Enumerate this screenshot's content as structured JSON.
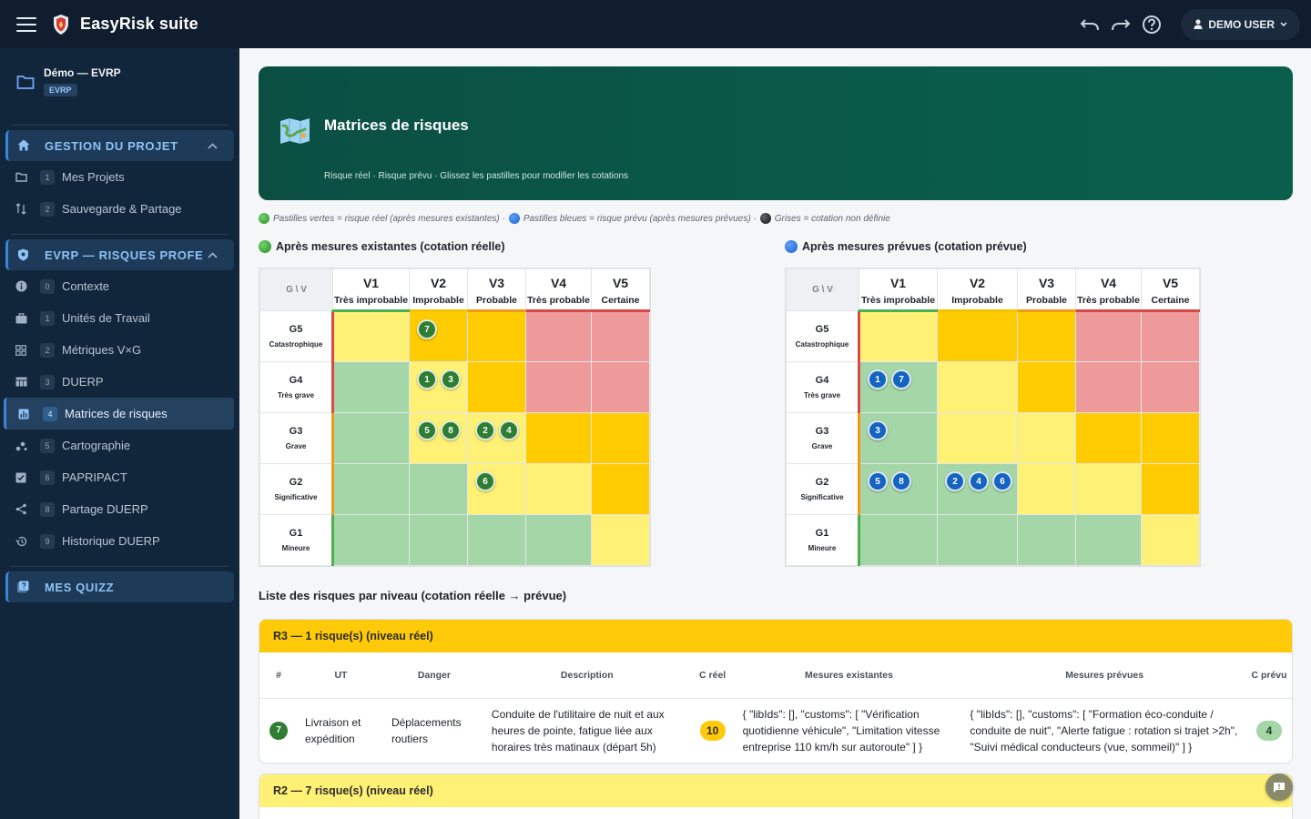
{
  "app": {
    "title": "EasyRisk suite",
    "user": "DEMO USER",
    "colors": {
      "topbar": "#0f1d2e",
      "sidebar": "#12263b",
      "hero": "#0a5a49"
    }
  },
  "sidebar": {
    "project": {
      "name": "Démo — EVRP",
      "badge": "EVRP"
    },
    "sections": [
      {
        "label": "GESTION DU PROJET",
        "icon": "home-icon",
        "items": [
          {
            "num": "1",
            "label": "Mes Projets",
            "icon": "folder-icon"
          },
          {
            "num": "2",
            "label": "Sauvegarde & Partage",
            "icon": "sort-arrows-icon"
          }
        ]
      },
      {
        "label": "EVRP — RISQUES PROFE",
        "icon": "shield-icon",
        "items": [
          {
            "num": "0",
            "label": "Contexte",
            "icon": "info-icon"
          },
          {
            "num": "1",
            "label": "Unités de Travail",
            "icon": "briefcase-icon"
          },
          {
            "num": "2",
            "label": "Métriques V×G",
            "icon": "grid-icon"
          },
          {
            "num": "3",
            "label": "DUERP",
            "icon": "table-icon"
          },
          {
            "num": "4",
            "label": "Matrices de risques",
            "icon": "bar-chart-icon"
          },
          {
            "num": "5",
            "label": "Cartographie",
            "icon": "scatter-icon"
          },
          {
            "num": "6",
            "label": "PAPRIPACT",
            "icon": "clipboard-check-icon"
          },
          {
            "num": "8",
            "label": "Partage DUERP",
            "icon": "share-icon"
          },
          {
            "num": "9",
            "label": "Historique DUERP",
            "icon": "history-icon"
          }
        ]
      },
      {
        "label": "MES QUIZZ",
        "icon": "quiz-icon"
      }
    ]
  },
  "hero": {
    "title": "Matrices de risques",
    "subtitle": "Risque réel · Risque prévu · Glissez les pastilles pour modifier les cotations"
  },
  "legend": {
    "green": "Pastilles vertes = risque réel (après mesures existantes) ·",
    "blue": "Pastilles bleues = risque prévu (après mesures prévues) ·",
    "grey": "Grises = cotation non définie"
  },
  "matrix": {
    "corner": "G \\ V",
    "v": [
      {
        "code": "V1",
        "label": "Très improbable"
      },
      {
        "code": "V2",
        "label": "Improbable"
      },
      {
        "code": "V3",
        "label": "Probable"
      },
      {
        "code": "V4",
        "label": "Très probable"
      },
      {
        "code": "V5",
        "label": "Certaine"
      }
    ],
    "g": [
      {
        "code": "G5",
        "label": "Catastrophique"
      },
      {
        "code": "G4",
        "label": "Très grave"
      },
      {
        "code": "G3",
        "label": "Grave"
      },
      {
        "code": "G2",
        "label": "Significative"
      },
      {
        "code": "G1",
        "label": "Mineure"
      }
    ],
    "real_title": "Après mesures existantes (cotation réelle)",
    "planned_title": "Après mesures prévues (cotation prévue)",
    "real": {
      "colors": [
        [
          "y",
          "o",
          "o",
          "r",
          "r"
        ],
        [
          "g",
          "y",
          "o",
          "r",
          "r"
        ],
        [
          "g",
          "y",
          "y",
          "o",
          "o"
        ],
        [
          "g",
          "g",
          "y",
          "y",
          "o"
        ],
        [
          "g",
          "g",
          "g",
          "g",
          "y"
        ]
      ],
      "chips": [
        [
          [],
          [
            "7"
          ],
          [],
          [],
          []
        ],
        [
          [],
          [
            "1",
            "3"
          ],
          [],
          [],
          []
        ],
        [
          [],
          [
            "5",
            "8"
          ],
          [
            "2",
            "4"
          ],
          [],
          []
        ],
        [
          [],
          [],
          [
            "6"
          ],
          [],
          []
        ],
        [
          [],
          [],
          [],
          [],
          []
        ]
      ]
    },
    "planned": {
      "colors": [
        [
          "y",
          "o",
          "o",
          "r",
          "r"
        ],
        [
          "g",
          "y",
          "o",
          "r",
          "r"
        ],
        [
          "g",
          "y",
          "y",
          "o",
          "o"
        ],
        [
          "g",
          "g",
          "y",
          "y",
          "o"
        ],
        [
          "g",
          "g",
          "g",
          "g",
          "y"
        ]
      ],
      "chips": [
        [
          [],
          [],
          [],
          [],
          []
        ],
        [
          [
            "1",
            "7"
          ],
          [],
          [],
          [],
          []
        ],
        [
          [
            "3"
          ],
          [],
          [],
          [],
          []
        ],
        [
          [
            "5",
            "8"
          ],
          [
            "2",
            "4",
            "6"
          ],
          [],
          [],
          []
        ],
        [
          [],
          [],
          [],
          [],
          []
        ]
      ]
    }
  },
  "list": {
    "title": "Liste des risques par niveau (cotation réelle → prévue)",
    "columns": {
      "num": "#",
      "ut": "UT",
      "danger": "Danger",
      "description": "Description",
      "creel": "C réel",
      "existing": "Mesures existantes",
      "planned": "Mesures prévues",
      "cprevu": "C prévu"
    },
    "groups": [
      {
        "label": "R3 — 1 risque(s) (niveau réel)",
        "rows": [
          {
            "num": "7",
            "ut": "Livraison et expédition",
            "danger": "Déplacements routiers",
            "description": "Conduite de l'utilitaire de nuit et aux heures de pointe, fatigue liée aux horaires très matinaux (départ 5h)",
            "creel": "10",
            "existing": "{ \"libIds\": [], \"customs\": [ \"Vérification quotidienne véhicule\", \"Limitation vitesse entreprise 110 km/h sur autoroute\" ] }",
            "planned": "{ \"libIds\": [], \"customs\": [ \"Formation éco-conduite / conduite de nuit\", \"Alerte fatigue : rotation si trajet >2h\", \"Suivi médical conducteurs (vue, sommeil)\" ] }",
            "cprevu": "4"
          }
        ]
      },
      {
        "label": "R2 — 7 risque(s) (niveau réel)",
        "rows": []
      }
    ]
  }
}
